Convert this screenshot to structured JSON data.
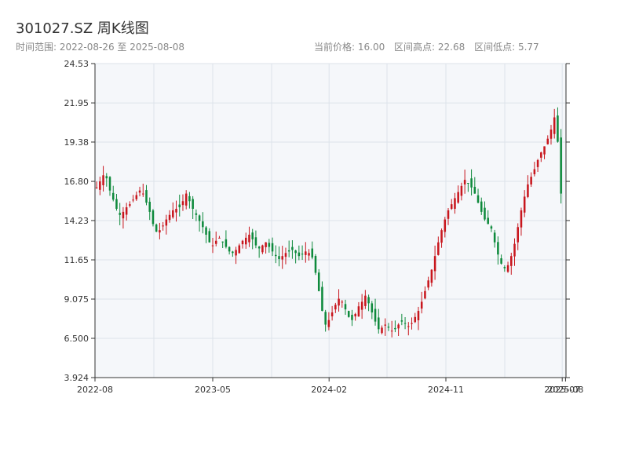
{
  "header": {
    "title": "301027.SZ 周K线图",
    "range_label": "时间范围: 2022-08-26 至 2025-08-08",
    "current_price": "当前价格: 16.00",
    "high_label": "区间高点: 22.68",
    "low_label": "区间低点: 5.77"
  },
  "colors": {
    "up": "#c8161d",
    "down": "#0e8a3c",
    "plot_bg": "#f5f7fa",
    "grid": "#dde3ea",
    "axis": "#333333"
  },
  "chart_data": {
    "type": "candlestick",
    "title": "301027.SZ 周K线图",
    "ylim": [
      3.924,
      24.53
    ],
    "yticks": [
      "3.924",
      "6.500",
      "9.075",
      "11.65",
      "14.23",
      "16.80",
      "19.38",
      "21.95",
      "24.53"
    ],
    "xticks": [
      "2022-08",
      "2023-05",
      "2024-02",
      "2024-11",
      "2025-07",
      "2025-08"
    ],
    "grid": true,
    "closes": [
      16.4,
      16.8,
      17.2,
      17.0,
      16.2,
      15.6,
      15.0,
      14.6,
      14.8,
      15.1,
      15.3,
      15.6,
      15.9,
      16.2,
      16.0,
      15.4,
      14.8,
      14.0,
      13.5,
      13.6,
      13.9,
      14.3,
      14.6,
      14.9,
      15.0,
      15.1,
      15.5,
      16.0,
      15.5,
      15.0,
      14.6,
      14.2,
      13.8,
      13.3,
      12.8,
      12.6,
      12.9,
      13.1,
      12.8,
      12.5,
      12.2,
      12.1,
      12.3,
      12.6,
      12.9,
      13.1,
      13.3,
      13.0,
      12.6,
      12.4,
      12.6,
      12.8,
      12.5,
      12.2,
      11.9,
      11.7,
      11.9,
      12.1,
      12.2,
      12.3,
      12.1,
      11.9,
      12.0,
      12.2,
      12.1,
      11.8,
      10.8,
      9.6,
      8.3,
      7.4,
      7.7,
      8.2,
      8.7,
      9.1,
      8.9,
      8.4,
      7.9,
      7.7,
      8.1,
      8.6,
      8.9,
      9.3,
      8.8,
      8.2,
      7.6,
      7.1,
      7.2,
      7.4,
      7.2,
      7.0,
      7.1,
      7.4,
      7.6,
      7.5,
      7.3,
      7.5,
      7.9,
      8.3,
      8.9,
      9.6,
      10.3,
      11.0,
      11.9,
      12.8,
      13.6,
      14.3,
      14.9,
      15.3,
      15.7,
      16.1,
      16.5,
      16.9,
      16.7,
      16.4,
      16.0,
      15.4,
      14.8,
      14.3,
      14.0,
      13.7,
      12.8,
      12.0,
      11.4,
      11.1,
      11.3,
      11.9,
      12.7,
      13.8,
      14.9,
      15.8,
      16.6,
      17.1,
      17.6,
      18.2,
      18.7,
      19.1,
      19.6,
      20.2,
      21.0,
      19.4,
      16.0
    ]
  }
}
